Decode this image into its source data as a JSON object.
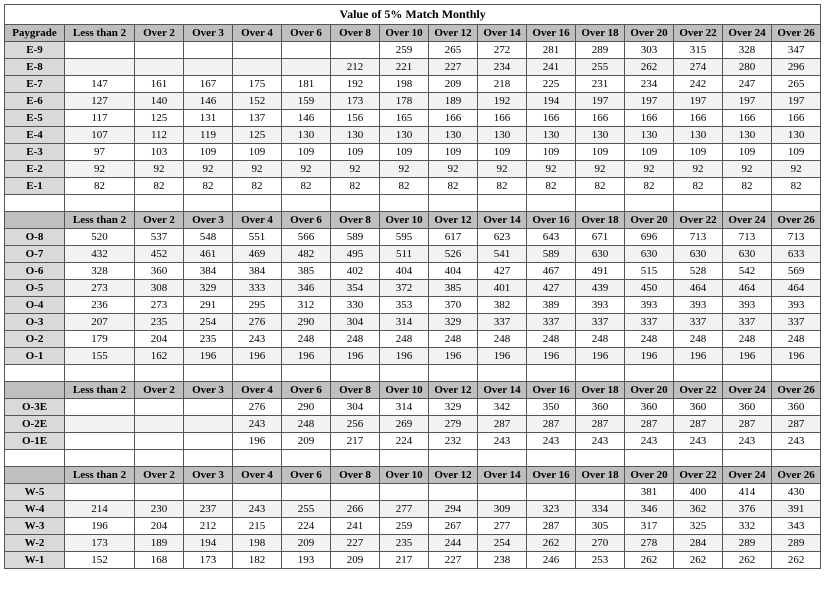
{
  "title": "Value of 5% Match Monthly",
  "headers": [
    "Paygrade",
    "Less than 2",
    "Over 2",
    "Over 3",
    "Over 4",
    "Over 6",
    "Over 8",
    "Over 10",
    "Over 12",
    "Over 14",
    "Over 16",
    "Over 18",
    "Over 20",
    "Over 22",
    "Over 24",
    "Over 26"
  ],
  "sections": [
    {
      "rows": [
        {
          "pg": "E-9",
          "shade": false,
          "v": [
            "",
            "",
            "",
            "",
            "",
            "",
            "259",
            "265",
            "272",
            "281",
            "289",
            "303",
            "315",
            "328",
            "347"
          ]
        },
        {
          "pg": "E-8",
          "shade": true,
          "v": [
            "",
            "",
            "",
            "",
            "",
            "212",
            "221",
            "227",
            "234",
            "241",
            "255",
            "262",
            "274",
            "280",
            "296"
          ]
        },
        {
          "pg": "E-7",
          "shade": false,
          "v": [
            "147",
            "161",
            "167",
            "175",
            "181",
            "192",
            "198",
            "209",
            "218",
            "225",
            "231",
            "234",
            "242",
            "247",
            "265"
          ]
        },
        {
          "pg": "E-6",
          "shade": true,
          "v": [
            "127",
            "140",
            "146",
            "152",
            "159",
            "173",
            "178",
            "189",
            "192",
            "194",
            "197",
            "197",
            "197",
            "197",
            "197"
          ]
        },
        {
          "pg": "E-5",
          "shade": false,
          "v": [
            "117",
            "125",
            "131",
            "137",
            "146",
            "156",
            "165",
            "166",
            "166",
            "166",
            "166",
            "166",
            "166",
            "166",
            "166"
          ]
        },
        {
          "pg": "E-4",
          "shade": true,
          "v": [
            "107",
            "112",
            "119",
            "125",
            "130",
            "130",
            "130",
            "130",
            "130",
            "130",
            "130",
            "130",
            "130",
            "130",
            "130"
          ]
        },
        {
          "pg": "E-3",
          "shade": false,
          "v": [
            "97",
            "103",
            "109",
            "109",
            "109",
            "109",
            "109",
            "109",
            "109",
            "109",
            "109",
            "109",
            "109",
            "109",
            "109"
          ]
        },
        {
          "pg": "E-2",
          "shade": true,
          "v": [
            "92",
            "92",
            "92",
            "92",
            "92",
            "92",
            "92",
            "92",
            "92",
            "92",
            "92",
            "92",
            "92",
            "92",
            "92"
          ]
        },
        {
          "pg": "E-1",
          "shade": false,
          "v": [
            "82",
            "82",
            "82",
            "82",
            "82",
            "82",
            "82",
            "82",
            "82",
            "82",
            "82",
            "82",
            "82",
            "82",
            "82"
          ]
        }
      ]
    },
    {
      "rows": [
        {
          "pg": "O-8",
          "shade": false,
          "v": [
            "520",
            "537",
            "548",
            "551",
            "566",
            "589",
            "595",
            "617",
            "623",
            "643",
            "671",
            "696",
            "713",
            "713",
            "713"
          ]
        },
        {
          "pg": "O-7",
          "shade": true,
          "v": [
            "432",
            "452",
            "461",
            "469",
            "482",
            "495",
            "511",
            "526",
            "541",
            "589",
            "630",
            "630",
            "630",
            "630",
            "633"
          ]
        },
        {
          "pg": "O-6",
          "shade": false,
          "v": [
            "328",
            "360",
            "384",
            "384",
            "385",
            "402",
            "404",
            "404",
            "427",
            "467",
            "491",
            "515",
            "528",
            "542",
            "569"
          ]
        },
        {
          "pg": "O-5",
          "shade": true,
          "v": [
            "273",
            "308",
            "329",
            "333",
            "346",
            "354",
            "372",
            "385",
            "401",
            "427",
            "439",
            "450",
            "464",
            "464",
            "464"
          ]
        },
        {
          "pg": "O-4",
          "shade": false,
          "v": [
            "236",
            "273",
            "291",
            "295",
            "312",
            "330",
            "353",
            "370",
            "382",
            "389",
            "393",
            "393",
            "393",
            "393",
            "393"
          ]
        },
        {
          "pg": "O-3",
          "shade": true,
          "v": [
            "207",
            "235",
            "254",
            "276",
            "290",
            "304",
            "314",
            "329",
            "337",
            "337",
            "337",
            "337",
            "337",
            "337",
            "337"
          ]
        },
        {
          "pg": "O-2",
          "shade": false,
          "v": [
            "179",
            "204",
            "235",
            "243",
            "248",
            "248",
            "248",
            "248",
            "248",
            "248",
            "248",
            "248",
            "248",
            "248",
            "248"
          ]
        },
        {
          "pg": "O-1",
          "shade": true,
          "v": [
            "155",
            "162",
            "196",
            "196",
            "196",
            "196",
            "196",
            "196",
            "196",
            "196",
            "196",
            "196",
            "196",
            "196",
            "196"
          ]
        }
      ]
    },
    {
      "rows": [
        {
          "pg": "O-3E",
          "shade": false,
          "v": [
            "",
            "",
            "",
            "276",
            "290",
            "304",
            "314",
            "329",
            "342",
            "350",
            "360",
            "360",
            "360",
            "360",
            "360"
          ]
        },
        {
          "pg": "O-2E",
          "shade": true,
          "v": [
            "",
            "",
            "",
            "243",
            "248",
            "256",
            "269",
            "279",
            "287",
            "287",
            "287",
            "287",
            "287",
            "287",
            "287"
          ]
        },
        {
          "pg": "O-1E",
          "shade": false,
          "v": [
            "",
            "",
            "",
            "196",
            "209",
            "217",
            "224",
            "232",
            "243",
            "243",
            "243",
            "243",
            "243",
            "243",
            "243"
          ]
        }
      ]
    },
    {
      "rows": [
        {
          "pg": "W-5",
          "shade": false,
          "v": [
            "",
            "",
            "",
            "",
            "",
            "",
            "",
            "",
            "",
            "",
            "",
            "381",
            "400",
            "414",
            "430"
          ]
        },
        {
          "pg": "W-4",
          "shade": true,
          "v": [
            "214",
            "230",
            "237",
            "243",
            "255",
            "266",
            "277",
            "294",
            "309",
            "323",
            "334",
            "346",
            "362",
            "376",
            "391"
          ]
        },
        {
          "pg": "W-3",
          "shade": false,
          "v": [
            "196",
            "204",
            "212",
            "215",
            "224",
            "241",
            "259",
            "267",
            "277",
            "287",
            "305",
            "317",
            "325",
            "332",
            "343"
          ]
        },
        {
          "pg": "W-2",
          "shade": true,
          "v": [
            "173",
            "189",
            "194",
            "198",
            "209",
            "227",
            "235",
            "244",
            "254",
            "262",
            "270",
            "278",
            "284",
            "289",
            "289"
          ]
        },
        {
          "pg": "W-1",
          "shade": false,
          "v": [
            "152",
            "168",
            "173",
            "182",
            "193",
            "209",
            "217",
            "227",
            "238",
            "246",
            "253",
            "262",
            "262",
            "262",
            "262"
          ]
        }
      ]
    }
  ]
}
